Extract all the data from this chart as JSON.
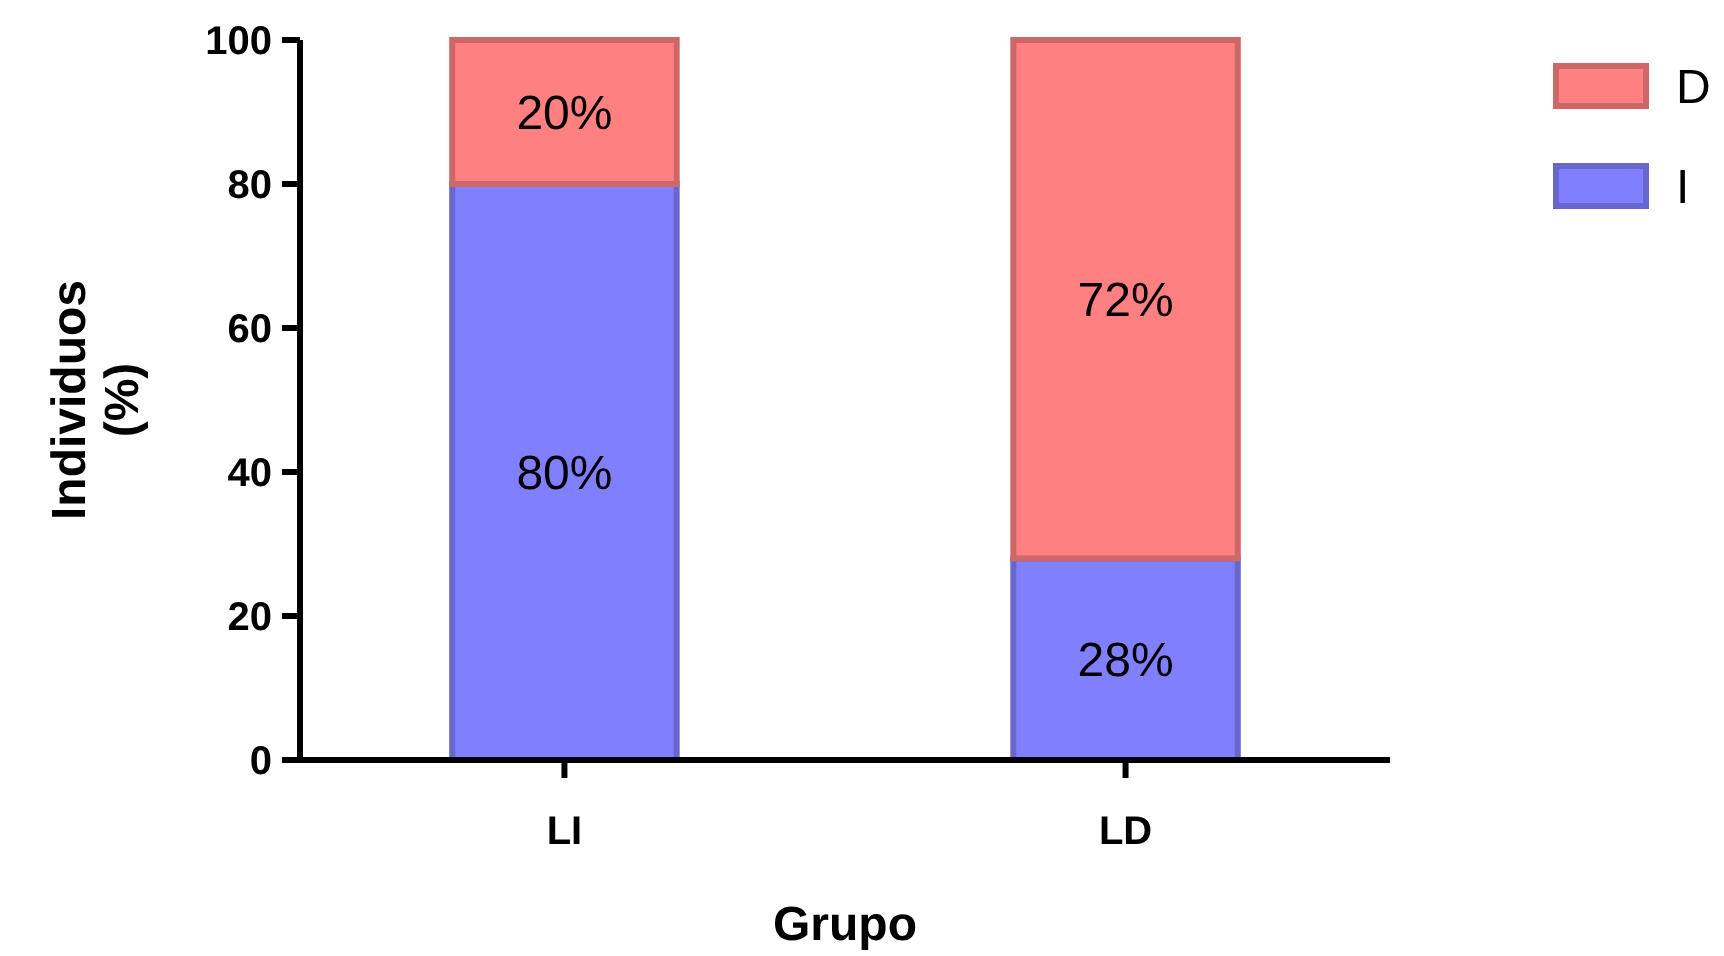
{
  "chart_data": {
    "type": "bar",
    "stacked": true,
    "xlabel": "Grupo",
    "ylabel": "Individuos (%)",
    "categories": [
      "LI",
      "LD"
    ],
    "series": [
      {
        "name": "I",
        "color": "#8080ff",
        "values": [
          80,
          28
        ],
        "value_labels": [
          "80%",
          "28%"
        ]
      },
      {
        "name": "D",
        "color": "#ff8080",
        "values": [
          20,
          72
        ],
        "value_labels": [
          "20%",
          "72%"
        ]
      }
    ],
    "ylim": [
      0,
      100
    ],
    "yticks": [
      0,
      20,
      40,
      60,
      80,
      100
    ],
    "grid": false,
    "legend": "top right"
  }
}
